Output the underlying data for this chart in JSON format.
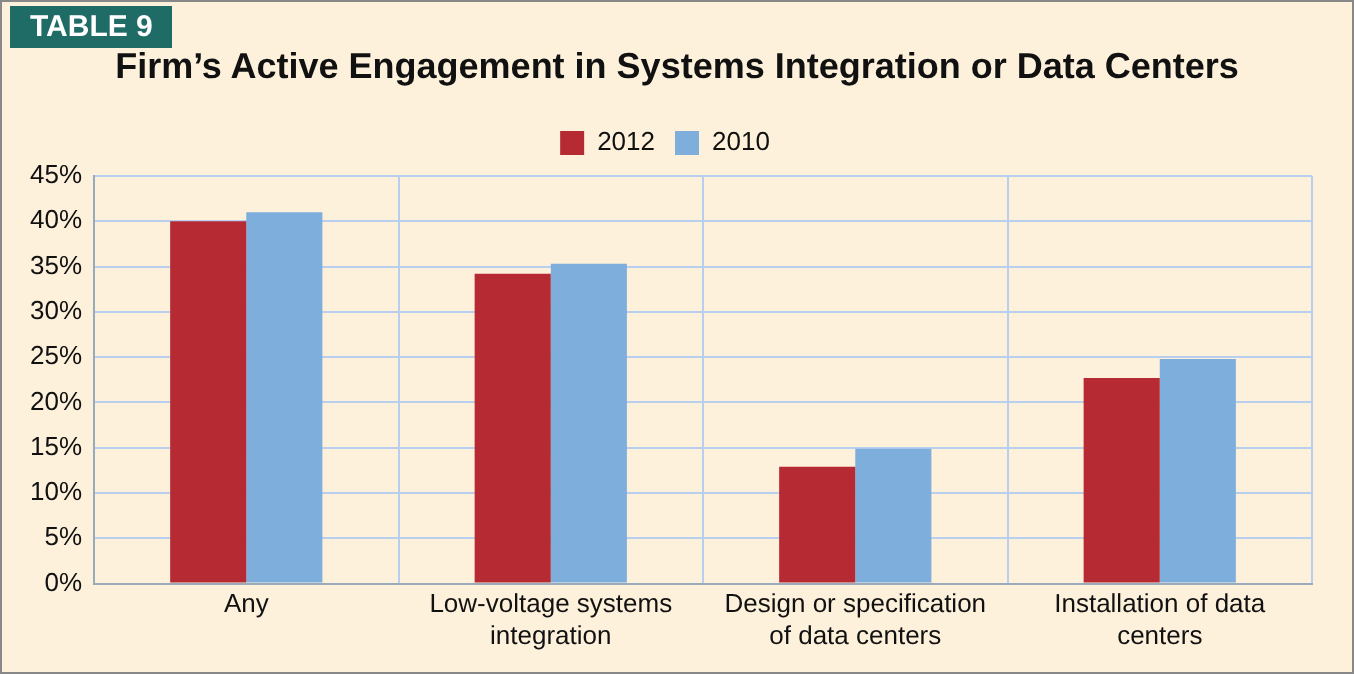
{
  "chart_data": {
    "type": "bar",
    "title": "Firm’s Active Engagement in Systems Integration or Data Centers",
    "annotations": [
      "TABLE 9"
    ],
    "categories": [
      "Any",
      "Low-voltage systems integration",
      "Design or specification of data centers",
      "Installation of data centers"
    ],
    "series": [
      {
        "name": "2012",
        "color": "#b52a33",
        "values": [
          40.0,
          34.2,
          12.9,
          22.7
        ]
      },
      {
        "name": "2010",
        "color": "#7eaedc",
        "values": [
          41.0,
          35.3,
          14.9,
          24.8
        ]
      }
    ],
    "ylim": [
      0,
      45
    ],
    "yticks": [
      {
        "value": 0,
        "label": "0%"
      },
      {
        "value": 5,
        "label": "5%"
      },
      {
        "value": 10,
        "label": "10%"
      },
      {
        "value": 15,
        "label": "15%"
      },
      {
        "value": 20,
        "label": "20%"
      },
      {
        "value": 25,
        "label": "25%"
      },
      {
        "value": 30,
        "label": "30%"
      },
      {
        "value": 35,
        "label": "35%"
      },
      {
        "value": 40,
        "label": "40%"
      },
      {
        "value": 45,
        "label": "45%"
      }
    ],
    "grid": true,
    "legend": "top"
  }
}
